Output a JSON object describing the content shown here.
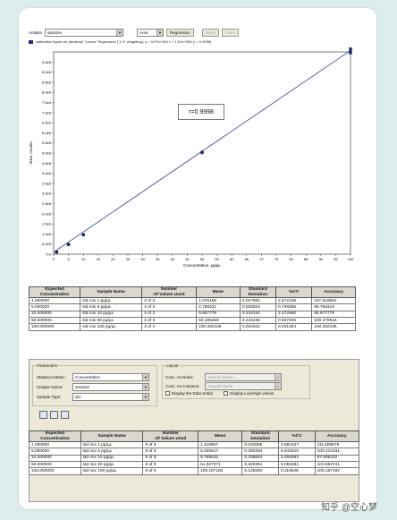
{
  "toolbar": {
    "analyte_label": "Analyte",
    "analyte_value": "atrazine",
    "area_value": "Area",
    "regression_label": "Regression",
    "btn_a": "Mean",
    "btn_b": "Invert"
  },
  "legend": {
    "text": "calibration figure.xls (atrazine) \"Linear\" Regression (\"1.0\" weighting): y = 9.97e+004 x + 1.01e+005 (r = 0.9998)"
  },
  "r_label": "r=0.9998",
  "chart_data": {
    "type": "scatter",
    "xlabel": "Concentration, pg/µL",
    "ylabel": "Area, counts",
    "xlim": [
      0,
      100
    ],
    "ylim": [
      0,
      10000000
    ],
    "x_ticks": [
      0,
      5,
      10,
      15,
      20,
      25,
      30,
      35,
      40,
      45,
      50,
      55,
      60,
      65,
      70,
      75,
      80,
      85,
      90,
      95,
      100
    ],
    "y_ticks": [
      "0.0",
      "5.0e5",
      "1.0e6",
      "1.5e6",
      "2.0e6",
      "2.5e6",
      "3.0e6",
      "3.5e6",
      "4.0e6",
      "4.5e6",
      "5.0e6",
      "5.5e6",
      "6.0e6",
      "6.5e6",
      "7.0e6",
      "7.5e6",
      "8.0e6",
      "8.5e6",
      "9.0e6",
      "9.5e6"
    ],
    "series": [
      {
        "x": [
          1,
          1,
          1,
          5,
          5,
          5,
          10,
          10,
          10,
          50,
          50,
          50,
          100,
          100,
          100
        ],
        "y": [
          107000,
          108000,
          109000,
          478000,
          480000,
          482000,
          960000,
          962000,
          965000,
          5020000,
          5030000,
          5040000,
          9950000,
          10050000,
          10150000
        ]
      }
    ],
    "fit": {
      "slope": 99700,
      "intercept": 101000
    },
    "r": "0.9998"
  },
  "table1": {
    "headers": [
      "Expected\nConcentration",
      "Sample Name",
      "Number\nOf Values Used",
      "Mean",
      "Standard\nDeviation",
      "%CV",
      "Accuracy"
    ],
    "rows": [
      [
        "1.000000",
        "std mix 1 pg/µL",
        "3 of 3",
        "1.075189",
        "0.027663",
        "2.572128",
        "107.518862"
      ],
      [
        "5.000000",
        "std mix 5 pg/µL",
        "3 of 3",
        "4.788421",
        "0.033819",
        "0.706286",
        "95.768418"
      ],
      [
        "10.000000",
        "std mix 10 pg/µL",
        "3 of 3",
        "9.597778",
        "0.218153",
        "2.272950",
        "95.977778"
      ],
      [
        "50.000000",
        "std mix 50 pg/µL",
        "3 of 3",
        "50.185258",
        "0.415236",
        "0.827406",
        "100.370516"
      ],
      [
        "100.000000",
        "std mix 100 pg/µL",
        "3 of 3",
        "100.362436",
        "0.044622",
        "0.041304",
        "100.362436"
      ]
    ]
  },
  "params": {
    "title": "Parameters",
    "stat_metric_label": "Statistics Metric:",
    "stat_metric_value": "Concentration",
    "analyte_label": "Analyte Name:",
    "analyte_value": "atrazine",
    "sample_type_label": "Sample Type:",
    "sample_type_value": "QC"
  },
  "layout": {
    "title": "Layout",
    "rows_label": "Conc. As Rows:",
    "rows_value": "Sample Name",
    "cols_label": "Conc. As Columns:",
    "cols_value": "Sample Name",
    "display_set_label": "Display the Data Set(s)",
    "display_low_high": "Display Low/High values"
  },
  "table2": {
    "headers": [
      "Expected\nConcentration",
      "Sample Name",
      "Number\nOf Values Used",
      "Mean",
      "Standard\nDeviation",
      "%CV",
      "Accuracy"
    ],
    "rows": [
      [
        "1.000000",
        "std mix 1 pg/µL",
        "9 of 9",
        "1.115997",
        "0.032088",
        "2.881547",
        "111.599679"
      ],
      [
        "5.000000",
        "std mix 5 pg/µL",
        "9 of 9",
        "5.020617",
        "0.280294",
        "5.642810",
        "100.412331"
      ],
      [
        "10.000000",
        "std mix 10 pg/µL",
        "9 of 9",
        "9.788532",
        "0.338591",
        "3.459293",
        "97.885322"
      ],
      [
        "50.000000",
        "std mix 50 pg/µL",
        "9 of 9",
        "51.927371",
        "2.620361",
        "5.051591",
        "103.854741"
      ],
      [
        "100.000000",
        "std mix 100 pg/µL",
        "9 of 9",
        "100.167182",
        "6.128280",
        "6.119649",
        "100.167182"
      ]
    ]
  },
  "watermark": "知乎 @空心梦"
}
